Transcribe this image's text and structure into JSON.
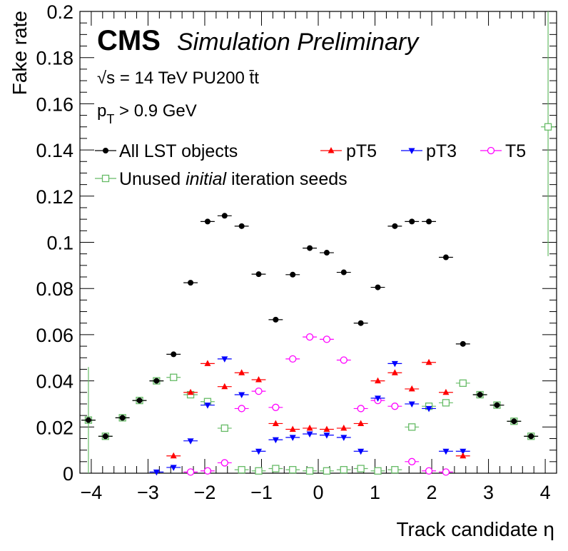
{
  "chart_data": {
    "type": "scatter",
    "xlabel": "Track candidate η",
    "ylabel": "Fake rate",
    "xlim": [
      -4.2,
      4.2
    ],
    "ylim": [
      0,
      0.2
    ],
    "x_ticks": [
      "−4",
      "−3",
      "−2",
      "−1",
      "0",
      "1",
      "2",
      "3",
      "4"
    ],
    "y_ticks": [
      "0",
      "0.02",
      "0.04",
      "0.06",
      "0.08",
      "0.1",
      "0.12",
      "0.14",
      "0.16",
      "0.18",
      "0.2"
    ],
    "bin_half_width": 0.125,
    "cms_label": "CMS",
    "cms_sublabel": "Simulation Preliminary",
    "energy_label": "√s = 14 TeV PU200 t̄t",
    "pt_label": "p_T > 0.9 GeV",
    "legend": [
      {
        "key": "all",
        "label": "All LST objects"
      },
      {
        "key": "pt5",
        "label": "pT5"
      },
      {
        "key": "pt3",
        "label": "pT3"
      },
      {
        "key": "t5",
        "label": "T5"
      },
      {
        "key": "unused",
        "label": "Unused initial iteration seeds"
      }
    ],
    "series": [
      {
        "key": "all",
        "name": "All LST objects",
        "color": "#000000",
        "marker": "filled-circle",
        "x": [
          -4.05,
          -3.75,
          -3.45,
          -3.15,
          -2.85,
          -2.55,
          -2.25,
          -1.95,
          -1.65,
          -1.35,
          -1.05,
          -0.75,
          -0.45,
          -0.15,
          0.15,
          0.45,
          0.75,
          1.05,
          1.35,
          1.65,
          1.95,
          2.25,
          2.55,
          2.85,
          3.15,
          3.45,
          3.75
        ],
        "y": [
          0.023,
          0.016,
          0.024,
          0.0315,
          0.04,
          0.0515,
          0.0825,
          0.109,
          0.1115,
          0.107,
          0.0862,
          0.0665,
          0.086,
          0.0975,
          0.0955,
          0.087,
          0.065,
          0.0805,
          0.107,
          0.109,
          0.109,
          0.0935,
          0.056,
          0.034,
          0.0295,
          0.0225,
          0.016
        ]
      },
      {
        "key": "pt5",
        "name": "pT5",
        "color": "#ff0000",
        "marker": "triangle-up",
        "x": [
          -2.55,
          -2.25,
          -1.95,
          -1.65,
          -1.35,
          -1.05,
          -0.75,
          -0.45,
          -0.15,
          0.15,
          0.45,
          0.75,
          1.05,
          1.35,
          1.65,
          1.95,
          2.25,
          2.55
        ],
        "y": [
          0.0075,
          0.035,
          0.0475,
          0.0375,
          0.0435,
          0.0405,
          0.0215,
          0.019,
          0.0195,
          0.019,
          0.0195,
          0.0215,
          0.04,
          0.0435,
          0.0365,
          0.048,
          0.035,
          0.0075
        ]
      },
      {
        "key": "pt3",
        "name": "pT3",
        "color": "#0000ff",
        "marker": "triangle-down",
        "x": [
          -2.85,
          -2.55,
          -2.25,
          -1.95,
          -1.65,
          -1.35,
          -1.05,
          -0.75,
          -0.45,
          -0.15,
          0.15,
          0.45,
          0.75,
          1.05,
          1.35,
          1.65,
          1.95,
          2.25,
          2.55
        ],
        "y": [
          0.0005,
          0.0025,
          0.014,
          0.0295,
          0.0495,
          0.034,
          0.0095,
          0.0145,
          0.0155,
          0.017,
          0.0165,
          0.0155,
          0.0095,
          0.0325,
          0.0475,
          0.03,
          0.028,
          0.0095,
          0.0095
        ]
      },
      {
        "key": "t5",
        "name": "T5",
        "color": "#ff00ff",
        "marker": "open-circle",
        "x": [
          -2.25,
          -1.95,
          -1.65,
          -1.35,
          -1.05,
          -0.75,
          -0.45,
          -0.15,
          0.15,
          0.45,
          0.75,
          1.05,
          1.35,
          1.65,
          1.95,
          2.25
        ],
        "y": [
          0.0005,
          0.001,
          0.0045,
          0.028,
          0.0355,
          0.0285,
          0.0495,
          0.059,
          0.058,
          0.049,
          0.028,
          0.0315,
          0.029,
          0.005,
          0.001,
          0.0005
        ]
      },
      {
        "key": "unused",
        "name": "Unused initial iteration seeds",
        "color": "#66bb66",
        "marker": "open-square",
        "x": [
          -4.05,
          -3.75,
          -3.45,
          -3.15,
          -2.85,
          -2.55,
          -2.25,
          -1.95,
          -1.65,
          -1.35,
          -1.05,
          -0.75,
          -0.45,
          -0.15,
          0.15,
          0.45,
          0.75,
          1.05,
          1.35,
          1.65,
          1.95,
          2.25,
          2.55,
          2.85,
          3.15,
          3.45,
          3.75,
          4.05
        ],
        "y": [
          0.023,
          0.016,
          0.024,
          0.0315,
          0.04,
          0.0415,
          0.034,
          0.031,
          0.0195,
          0.0015,
          0.001,
          0.002,
          0.0015,
          0.001,
          0.001,
          0.0015,
          0.002,
          0.001,
          0.0015,
          0.02,
          0.029,
          0.0305,
          0.039,
          0.034,
          0.0295,
          0.0225,
          0.016,
          0.15
        ],
        "yerr": [
          0.023,
          0,
          0,
          0,
          0,
          0,
          0,
          0,
          0,
          0,
          0,
          0,
          0,
          0,
          0,
          0,
          0,
          0,
          0,
          0,
          0,
          0,
          0,
          0,
          0,
          0,
          0,
          0.056
        ]
      }
    ]
  }
}
